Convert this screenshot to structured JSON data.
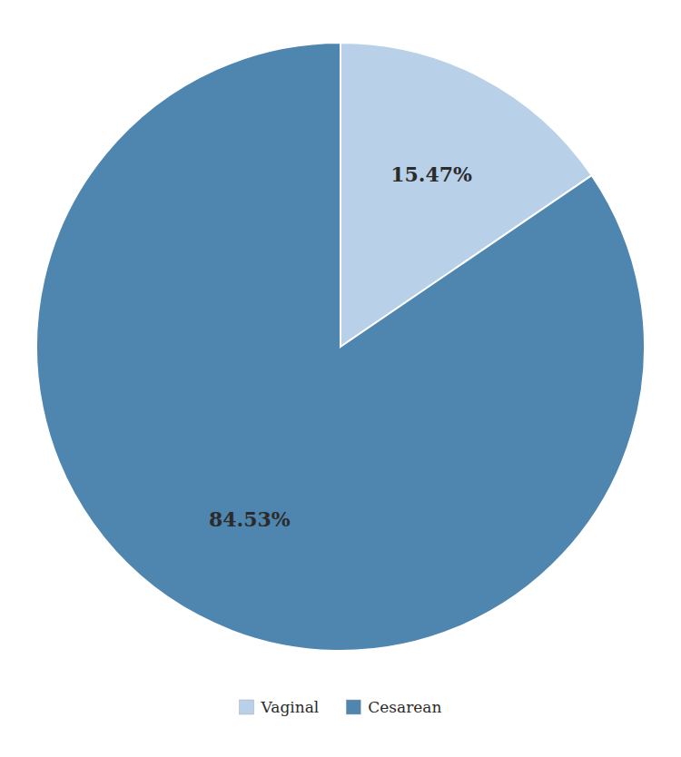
{
  "chart_data": {
    "type": "pie",
    "categories": [
      "Vaginal",
      "Cesarean"
    ],
    "values": [
      15.47,
      84.53
    ],
    "value_labels": [
      "15.47%",
      "84.53%"
    ],
    "colors": [
      "#b8d0e8",
      "#4f86b0"
    ],
    "data_labels": true,
    "legend": "bottom"
  }
}
